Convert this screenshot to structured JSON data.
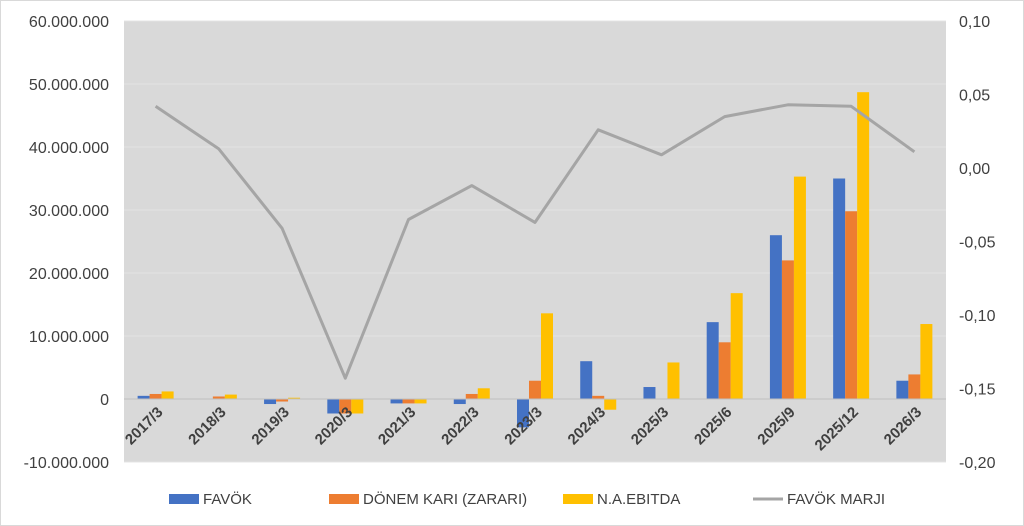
{
  "chart_data": {
    "type": "bar",
    "categories": [
      "2017/3",
      "2018/3",
      "2019/3",
      "2020/3",
      "2021/3",
      "2022/3",
      "2023/3",
      "2024/3",
      "2025/3",
      "2025/6",
      "2025/9",
      "2025/12",
      "2026/3"
    ],
    "series": [
      {
        "name": "FAVÖK",
        "type": "bar",
        "axis": "left",
        "color": "#4472C4",
        "values": [
          500000,
          0,
          -800000,
          -2300000,
          -700000,
          -800000,
          -4500000,
          6000000,
          1900000,
          12200000,
          26000000,
          35000000,
          2900000
        ]
      },
      {
        "name": "DÖNEM KARI (ZARARI)",
        "type": "bar",
        "axis": "left",
        "color": "#ED7D31",
        "values": [
          800000,
          400000,
          -400000,
          -2300000,
          -700000,
          800000,
          2900000,
          500000,
          0,
          9000000,
          22000000,
          29800000,
          3900000
        ]
      },
      {
        "name": "N.A.EBITDA",
        "type": "bar",
        "axis": "left",
        "color": "#FFC000",
        "values": [
          1200000,
          700000,
          200000,
          -2300000,
          -700000,
          1700000,
          13600000,
          -1700000,
          5800000,
          16800000,
          35300000,
          48700000,
          11900000
        ]
      },
      {
        "name": "FAVÖK MARJI",
        "type": "line",
        "axis": "right",
        "color": "#A5A5A5",
        "values": [
          0.042,
          0.013,
          -0.041,
          -0.143,
          -0.035,
          -0.012,
          -0.037,
          0.026,
          0.009,
          0.035,
          0.043,
          0.042,
          0.011
        ]
      }
    ],
    "y_left": {
      "min": -10000000,
      "max": 60000000,
      "ticks": [
        "-10.000.000",
        "0",
        "10.000.000",
        "20.000.000",
        "30.000.000",
        "40.000.000",
        "50.000.000",
        "60.000.000"
      ]
    },
    "y_right": {
      "min": -0.2,
      "max": 0.1,
      "ticks": [
        "-0,20",
        "-0,15",
        "-0,10",
        "-0,05",
        "0,00",
        "0,05",
        "0,10"
      ]
    },
    "grid": true,
    "legend_position": "bottom"
  }
}
